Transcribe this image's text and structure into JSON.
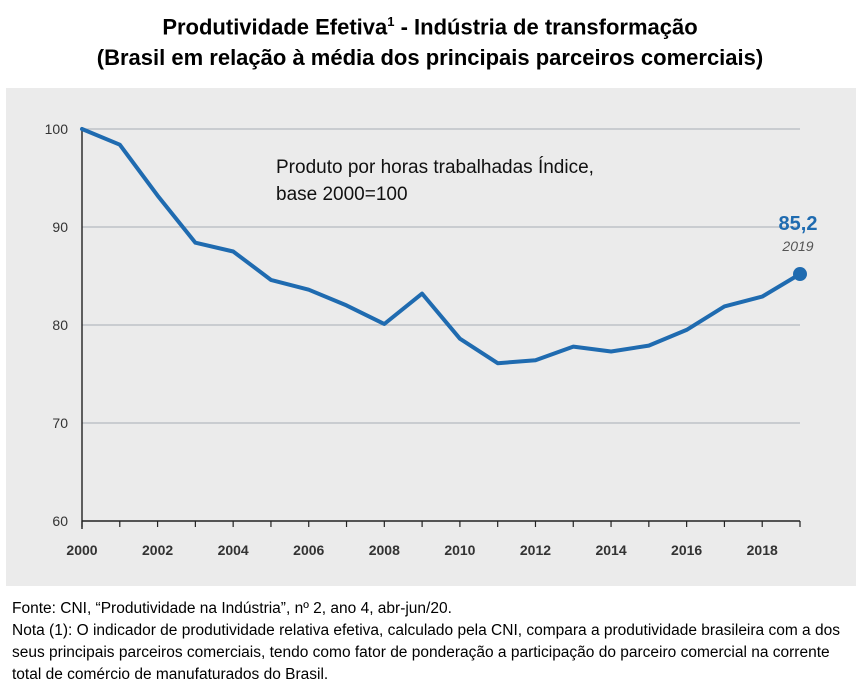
{
  "chart_data": {
    "type": "line",
    "title": "Produtividade Efetiva",
    "title_superscript": "1",
    "title_suffix": " - Indústria de transformação",
    "subtitle": "(Brasil em relação à média dos principais parceiros comerciais)",
    "annotation": {
      "line1": "Produto por horas trabalhadas Índice,",
      "line2": "base 2000=100"
    },
    "callout": {
      "value_label": "85,2",
      "year_label": "2019"
    },
    "x": [
      2000,
      2001,
      2002,
      2003,
      2004,
      2005,
      2006,
      2007,
      2008,
      2009,
      2010,
      2011,
      2012,
      2013,
      2014,
      2015,
      2016,
      2017,
      2018,
      2019
    ],
    "series": [
      {
        "values": [
          100,
          98.4,
          93.2,
          88.4,
          87.5,
          84.6,
          83.6,
          82.0,
          80.1,
          83.2,
          78.6,
          76.1,
          76.4,
          77.8,
          77.3,
          77.9,
          79.5,
          81.9,
          82.9,
          85.2
        ]
      }
    ],
    "xlim": [
      2000,
      2019
    ],
    "ylim": [
      60,
      100
    ],
    "x_ticks": [
      "2000",
      "2002",
      "2004",
      "2006",
      "2008",
      "2010",
      "2012",
      "2014",
      "2016",
      "2018"
    ],
    "y_ticks": [
      "60",
      "70",
      "80",
      "90",
      "100"
    ],
    "grid": "horizontal",
    "line_color": "#1f6bb0",
    "callout_color": "#1f6bb0"
  },
  "footer": {
    "source": "Fonte: CNI, “Produtividade na Indústria”, nº 2, ano 4, abr-jun/20.",
    "note": "Nota (1): O indicador de produtividade relativa efetiva, calculado pela CNI, compara a produtividade brasileira com a dos seus principais parceiros comerciais, tendo como fator de ponderação a participação do parceiro comercial na corrente total de comércio de manufaturados do Brasil."
  }
}
